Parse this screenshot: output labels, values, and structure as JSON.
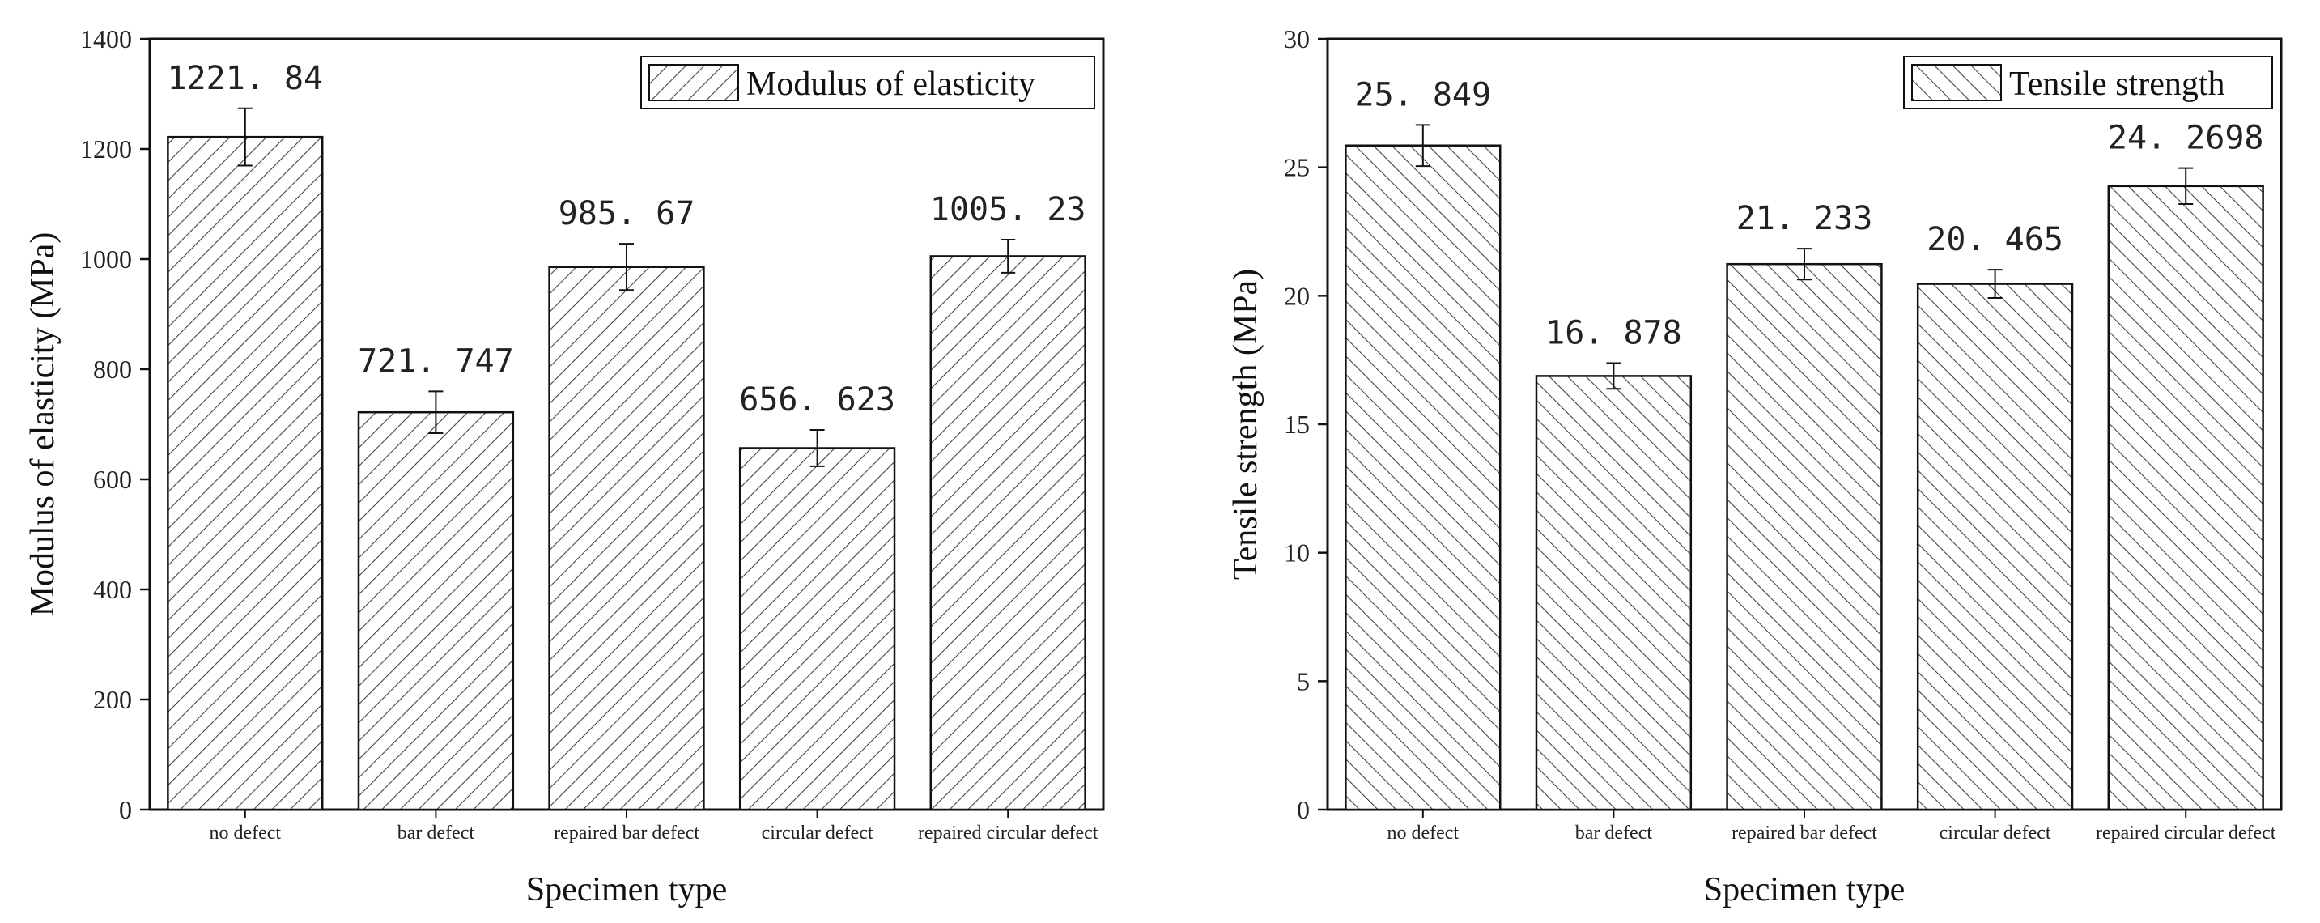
{
  "chart_data": [
    {
      "type": "bar",
      "title": "",
      "xlabel": "Specimen type",
      "ylabel": "Modulus of elasticity (MPa)",
      "legend": "Modulus of elasticity",
      "legend_position": "top-right",
      "hatch": "forward",
      "categories": [
        "no defect",
        "bar defect",
        "repaired bar defect",
        "circular defect",
        "repaired circular defect"
      ],
      "values": [
        1221.84,
        721.747,
        985.67,
        656.623,
        1005.23
      ],
      "value_labels": [
        "1221. 84",
        "721. 747",
        "985. 67",
        "656. 623",
        "1005. 23"
      ],
      "errors": [
        52,
        38,
        42,
        33,
        30
      ],
      "ylim": [
        0,
        1400
      ],
      "yticks": [
        0,
        200,
        400,
        600,
        800,
        1000,
        1200,
        1400
      ],
      "grid": false
    },
    {
      "type": "bar",
      "title": "",
      "xlabel": "Specimen type",
      "ylabel": "Tensile strength (MPa)",
      "legend": "Tensile strength",
      "legend_position": "top-right",
      "hatch": "backward",
      "categories": [
        "no defect",
        "bar defect",
        "repaired bar defect",
        "circular defect",
        "repaired circular defect"
      ],
      "values": [
        25.849,
        16.878,
        21.233,
        20.465,
        24.2698
      ],
      "value_labels": [
        "25. 849",
        "16. 878",
        "21. 233",
        "20. 465",
        "24. 2698"
      ],
      "errors": [
        0.8,
        0.5,
        0.6,
        0.55,
        0.7
      ],
      "ylim": [
        0,
        30
      ],
      "yticks": [
        0,
        5,
        10,
        15,
        20,
        25,
        30
      ],
      "grid": false
    }
  ]
}
